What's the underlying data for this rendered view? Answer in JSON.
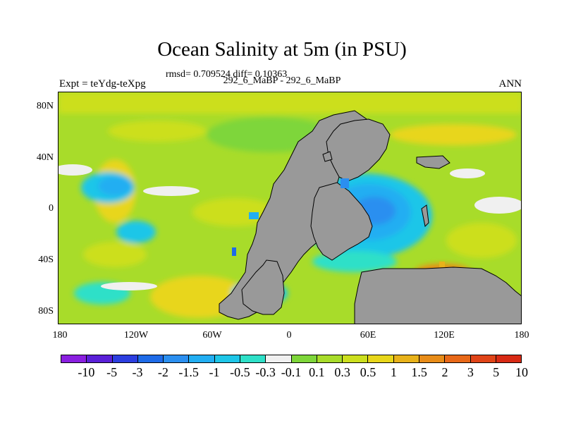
{
  "title": "Ocean Salinity at 5m (in PSU)",
  "stats": "rmsd= 0.709524 diff= 0.10363",
  "subtitle": "292_6_MaBP - 292_6_MaBP",
  "left_label": "Expt = teYdg-teXpg",
  "right_label": "ANN",
  "y_ticks": [
    "80N",
    "40N",
    "0",
    "40S",
    "80S"
  ],
  "x_ticks": [
    "180",
    "120W",
    "60W",
    "0",
    "60E",
    "120E",
    "180"
  ],
  "colorbar": {
    "labels": [
      "-10",
      "-5",
      "-3",
      "-2",
      "-1.5",
      "-1",
      "-0.5",
      "-0.3",
      "-0.1",
      "0.1",
      "0.3",
      "0.5",
      "1",
      "1.5",
      "2",
      "3",
      "5",
      "10"
    ],
    "colors": [
      "#8a1fe0",
      "#5a20d8",
      "#2c3ee0",
      "#1e6be8",
      "#2b8ff0",
      "#22aef2",
      "#1ec6e8",
      "#2ee0c8",
      "#f0f0f0",
      "#7ed63a",
      "#a8dc2a",
      "#ccdf1e",
      "#e8d61a",
      "#e8b21a",
      "#e88c18",
      "#e86818",
      "#e04418",
      "#d82a14"
    ]
  },
  "colors": {
    "land": "#999999",
    "ocean_base": "#a8dc2a"
  }
}
